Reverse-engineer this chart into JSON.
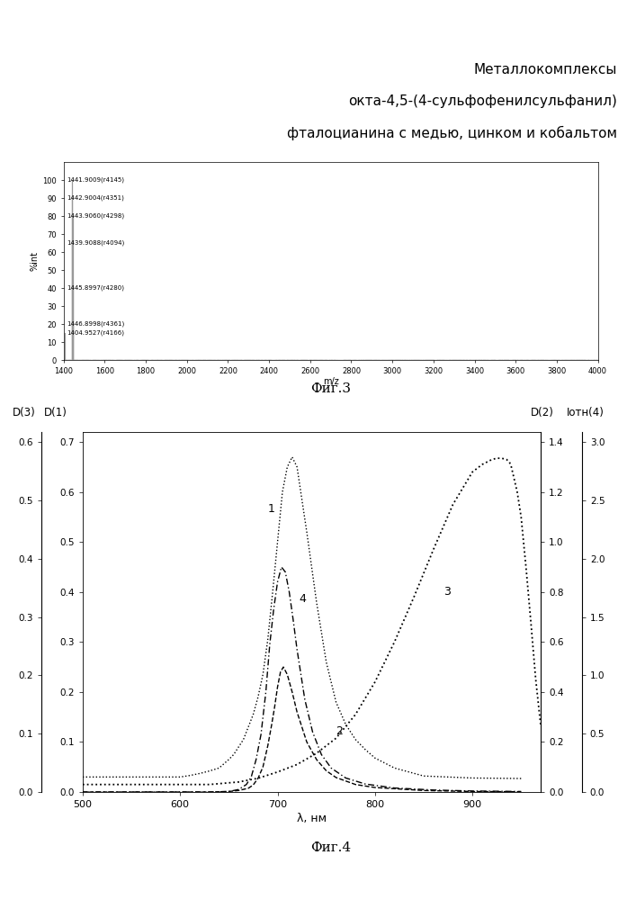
{
  "title_lines": [
    "Металлокомплексы",
    "окта-4,5-(4-сульфофенилсульфанил)",
    "фталоцианина с медью, цинком и кобальтом"
  ],
  "fig3_caption": "Фиг.3",
  "fig4_caption": "Фиг.4",
  "ms_peaks": [
    {
      "mz": 1441.9009,
      "intensity": 100,
      "label": "1441.9009(r4145)"
    },
    {
      "mz": 1442.9004,
      "intensity": 90,
      "label": "1442.9004(r4351)"
    },
    {
      "mz": 1443.906,
      "intensity": 80,
      "label": "1443.9060(r4298)"
    },
    {
      "mz": 1439.9088,
      "intensity": 65,
      "label": "1439.9088(r4094)"
    },
    {
      "mz": 1445.8997,
      "intensity": 40,
      "label": "1445.8997(r4280)"
    },
    {
      "mz": 1446.8998,
      "intensity": 20,
      "label": "1446.8998(r4361)"
    },
    {
      "mz": 1404.9527,
      "intensity": 15,
      "label": "1404.9527(r4166)"
    }
  ],
  "ms_xlim": [
    1400,
    4000
  ],
  "ms_ylim": [
    0,
    110
  ],
  "ms_xticks": [
    1400,
    1600,
    1800,
    2000,
    2200,
    2400,
    2600,
    2800,
    3000,
    3200,
    3400,
    3600,
    3800,
    4000
  ],
  "ms_yticks": [
    0,
    10,
    20,
    30,
    40,
    50,
    60,
    70,
    80,
    90,
    100
  ],
  "ms_ylabel": "%int",
  "ms_xlabel": "m/z",
  "curve1_x": [
    500,
    550,
    580,
    600,
    610,
    620,
    630,
    640,
    650,
    655,
    660,
    665,
    670,
    675,
    680,
    685,
    690,
    695,
    700,
    703,
    705,
    708,
    710,
    715,
    720,
    730,
    740,
    750,
    760,
    770,
    780,
    790,
    800,
    820,
    850,
    900,
    950
  ],
  "curve1_y": [
    0.03,
    0.03,
    0.03,
    0.03,
    0.033,
    0.037,
    0.042,
    0.048,
    0.065,
    0.075,
    0.09,
    0.105,
    0.13,
    0.155,
    0.19,
    0.235,
    0.305,
    0.4,
    0.5,
    0.56,
    0.6,
    0.63,
    0.65,
    0.67,
    0.65,
    0.52,
    0.38,
    0.26,
    0.18,
    0.135,
    0.105,
    0.085,
    0.068,
    0.048,
    0.032,
    0.028,
    0.027
  ],
  "curve2_x": [
    500,
    550,
    600,
    630,
    650,
    660,
    670,
    675,
    680,
    685,
    690,
    694,
    697,
    700,
    703,
    706,
    710,
    715,
    720,
    730,
    740,
    750,
    760,
    780,
    800,
    850,
    900,
    950
  ],
  "curve2_y": [
    0.0,
    0.0,
    0.0,
    0.0,
    0.002,
    0.006,
    0.015,
    0.028,
    0.055,
    0.1,
    0.185,
    0.27,
    0.34,
    0.42,
    0.48,
    0.5,
    0.47,
    0.4,
    0.32,
    0.2,
    0.13,
    0.085,
    0.058,
    0.03,
    0.018,
    0.006,
    0.002,
    0.001
  ],
  "curve3_x": [
    500,
    550,
    600,
    630,
    660,
    680,
    700,
    720,
    740,
    760,
    780,
    800,
    820,
    840,
    860,
    880,
    900,
    910,
    920,
    925,
    930,
    935,
    938,
    940,
    943,
    946,
    950,
    955,
    960,
    965,
    970
  ],
  "curve3_y": [
    0.03,
    0.03,
    0.03,
    0.03,
    0.04,
    0.055,
    0.08,
    0.11,
    0.155,
    0.215,
    0.31,
    0.44,
    0.6,
    0.78,
    0.97,
    1.15,
    1.28,
    1.31,
    1.33,
    1.335,
    1.335,
    1.33,
    1.32,
    1.3,
    1.25,
    1.2,
    1.1,
    0.9,
    0.68,
    0.45,
    0.27
  ],
  "curve4_x": [
    500,
    550,
    600,
    630,
    650,
    660,
    668,
    673,
    678,
    683,
    688,
    692,
    696,
    700,
    704,
    708,
    712,
    716,
    720,
    728,
    736,
    745,
    755,
    770,
    790,
    820,
    860,
    900,
    950
  ],
  "curve4_y": [
    0.0,
    0.0,
    0.0,
    0.0,
    0.001,
    0.005,
    0.015,
    0.03,
    0.065,
    0.115,
    0.2,
    0.295,
    0.365,
    0.42,
    0.45,
    0.44,
    0.4,
    0.345,
    0.285,
    0.185,
    0.12,
    0.075,
    0.048,
    0.028,
    0.016,
    0.008,
    0.004,
    0.002,
    0.001
  ],
  "left_yticks_D3": [
    0.0,
    0.1,
    0.2,
    0.3,
    0.4,
    0.5,
    0.6
  ],
  "left_yticks_D1": [
    0.0,
    0.1,
    0.2,
    0.3,
    0.4,
    0.5,
    0.6,
    0.7
  ],
  "right_yticks_D2": [
    0.0,
    0.2,
    0.4,
    0.6,
    0.8,
    1.0,
    1.2,
    1.4
  ],
  "right_yticks_I4": [
    0.0,
    0.5,
    1.0,
    1.5,
    2.0,
    2.5,
    3.0
  ],
  "fig4_xlim": [
    500,
    970
  ],
  "fig4_xticks": [
    500,
    600,
    700,
    800,
    900
  ],
  "fig4_xlabel": "λ, нм",
  "label1": "1",
  "label2": "2",
  "label3": "3",
  "label4": "4",
  "left_ylabel_D3": "D(3)",
  "left_ylabel_D1": "D(1)",
  "right_ylabel_D2": "D(2)",
  "right_ylabel_I4": "Iотн(4)",
  "background_color": "#ffffff"
}
